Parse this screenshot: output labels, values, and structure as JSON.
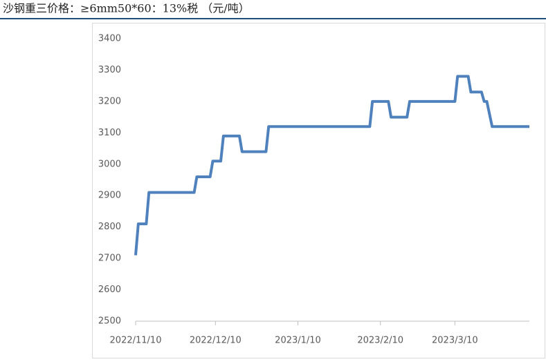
{
  "chart_data": {
    "type": "line",
    "title": "沙钢重三价格：≥6mm50*60：13%税 （元/吨）",
    "x": [
      "2022/11/10",
      "2022/11/11",
      "2022/11/14",
      "2022/11/15",
      "2022/12/2",
      "2022/12/3",
      "2022/12/8",
      "2022/12/9",
      "2022/12/12",
      "2022/12/13",
      "2022/12/19",
      "2022/12/20",
      "2022/12/29",
      "2022/12/30",
      "2023/2/6",
      "2023/2/7",
      "2023/2/13",
      "2023/2/14",
      "2023/2/20",
      "2023/2/21",
      "2023/3/10",
      "2023/3/11",
      "2023/3/15",
      "2023/3/16",
      "2023/3/20",
      "2023/3/21",
      "2023/3/22",
      "2023/3/24",
      "2023/4/7"
    ],
    "series": [
      {
        "color": "#4f81bd",
        "values": [
          2710,
          2810,
          2810,
          2910,
          2910,
          2960,
          2960,
          3010,
          3010,
          3090,
          3090,
          3040,
          3040,
          3120,
          3120,
          3200,
          3200,
          3150,
          3150,
          3200,
          3200,
          3280,
          3280,
          3230,
          3230,
          3200,
          3200,
          3120,
          3120
        ]
      }
    ],
    "xlim": [
      "2022/11/10",
      "2023/4/7"
    ],
    "xticks": [
      "2022/11/10",
      "2022/12/10",
      "2023/1/10",
      "2023/2/10",
      "2023/3/10"
    ],
    "ylim": [
      2500,
      3400
    ],
    "yticks": [
      2500,
      2600,
      2700,
      2800,
      2900,
      3000,
      3100,
      3200,
      3300,
      3400
    ]
  }
}
